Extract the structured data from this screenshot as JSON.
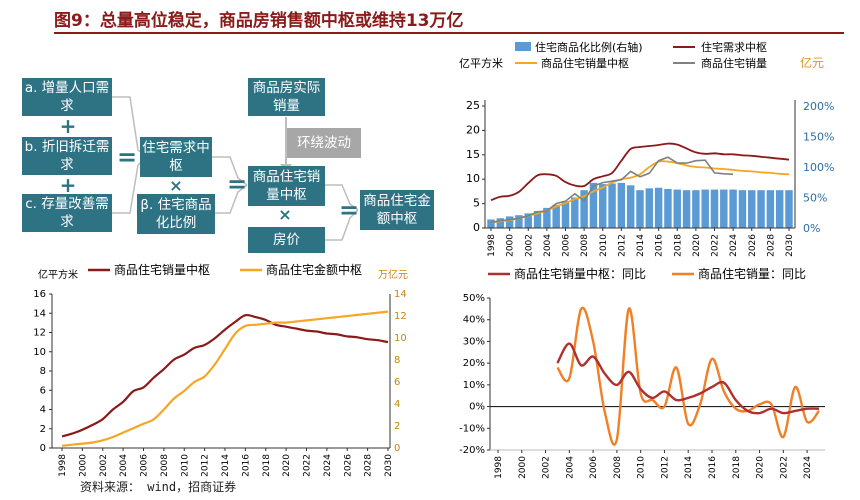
{
  "title": "图9：总量高位稳定，商品房销售额中枢或维持13万亿",
  "source": "资料来源： wind，招商证券",
  "colors": {
    "red": "#8b1a1a",
    "orange": "#f5a623",
    "blue": "#5b9bd5",
    "grey": "#808080",
    "teal": "#2e7384",
    "neg": "#b03030",
    "pos_orange": "#f07f25"
  },
  "diagram": {
    "box_a": "a. 增量人口需求",
    "box_b": "b. 折旧拆迁需求",
    "box_c": "c. 存量改善需求",
    "box_housing_demand": "住宅需求中枢",
    "box_beta": "β. 住宅商品化比例",
    "box_actual_sales": "商品房实际销量",
    "box_fluctuation": "环绕波动",
    "box_sales_center": "商品住宅销量中枢",
    "box_price": "房价",
    "box_amount_center": "商品住宅金额中枢",
    "plus": "+",
    "equals": "=",
    "times": "×"
  },
  "chart_data": [
    {
      "type": "bar+line",
      "legend": [
        "住宅商品化比例(右轴)",
        "住宅需求中枢",
        "商品住宅销量中枢",
        "商品住宅销量"
      ],
      "left_unit": "亿平方米",
      "right_unit": "亿元",
      "x": [
        1998,
        1999,
        2000,
        2001,
        2002,
        2003,
        2004,
        2005,
        2006,
        2007,
        2008,
        2009,
        2010,
        2011,
        2012,
        2013,
        2014,
        2015,
        2016,
        2017,
        2018,
        2019,
        2020,
        2021,
        2022,
        2023,
        2024,
        2025,
        2026,
        2027,
        2028,
        2029,
        2030
      ],
      "xticks": [
        "1998",
        "2000",
        "2002",
        "2004",
        "2006",
        "2008",
        "2010",
        "2012",
        "2014",
        "2016",
        "2018",
        "2020",
        "2022",
        "2024",
        "2026",
        "2028",
        "2030"
      ],
      "ylim": [
        0,
        25
      ],
      "yticks": [
        "0",
        "5",
        "10",
        "15",
        "20",
        "25"
      ],
      "y2lim": [
        0,
        200
      ],
      "y2ticks": [
        "0%",
        "50%",
        "100%",
        "150%",
        "200%"
      ],
      "ratio_bar_pct": [
        14,
        16,
        19,
        21,
        24,
        28,
        33,
        38,
        44,
        50,
        62,
        74,
        72,
        73,
        74,
        70,
        62,
        65,
        66,
        64,
        63,
        62,
        62,
        63,
        63,
        63,
        63,
        62,
        62,
        62,
        62,
        62,
        62
      ],
      "housing_demand": [
        5.7,
        6.4,
        6.6,
        7.4,
        9.2,
        10.8,
        11.0,
        10.7,
        9.4,
        8.7,
        8.6,
        10.0,
        10.6,
        11.3,
        13.8,
        16.2,
        16.6,
        16.8,
        17.0,
        17.3,
        17.1,
        16.3,
        15.5,
        15.2,
        15.3,
        15.1,
        15.1,
        14.9,
        14.8,
        14.6,
        14.4,
        14.2,
        14.0
      ],
      "sales_center": [
        1.1,
        1.4,
        1.6,
        2.0,
        2.5,
        3.0,
        3.6,
        4.4,
        5.1,
        5.9,
        6.5,
        7.5,
        8.3,
        9.3,
        10.0,
        10.3,
        11.0,
        12.5,
        13.6,
        13.6,
        13.3,
        12.8,
        12.5,
        12.4,
        12.2,
        12.1,
        11.9,
        11.7,
        11.6,
        11.4,
        11.3,
        11.1,
        11.0
      ],
      "actual_sales": [
        1.1,
        1.5,
        1.7,
        2.0,
        2.5,
        3.3,
        3.5,
        5.0,
        5.5,
        7.0,
        5.6,
        8.6,
        9.3,
        9.6,
        9.9,
        11.6,
        10.5,
        11.2,
        13.8,
        14.5,
        13.3,
        13.3,
        13.8,
        13.9,
        11.3,
        11.1,
        11.0
      ]
    },
    {
      "type": "line",
      "legend": [
        "商品住宅销量中枢",
        "商品住宅金额中枢"
      ],
      "left_unit": "亿平方米",
      "right_unit": "万亿元",
      "x": [
        1998,
        1999,
        2000,
        2001,
        2002,
        2003,
        2004,
        2005,
        2006,
        2007,
        2008,
        2009,
        2010,
        2011,
        2012,
        2013,
        2014,
        2015,
        2016,
        2017,
        2018,
        2019,
        2020,
        2021,
        2022,
        2023,
        2024,
        2025,
        2026,
        2027,
        2028,
        2029,
        2030
      ],
      "xticks": [
        "1998",
        "2000",
        "2002",
        "2004",
        "2006",
        "2008",
        "2010",
        "2012",
        "2014",
        "2016",
        "2018",
        "2020",
        "2022",
        "2024",
        "2026",
        "2028",
        "2030"
      ],
      "ylim": [
        0,
        16
      ],
      "yticks": [
        "0",
        "2",
        "4",
        "6",
        "8",
        "10",
        "12",
        "14",
        "16"
      ],
      "y2lim": [
        0,
        14
      ],
      "y2ticks": [
        "0",
        "2",
        "4",
        "6",
        "8",
        "10",
        "12",
        "14"
      ],
      "sales_center": [
        1.2,
        1.5,
        1.9,
        2.4,
        3.0,
        4.0,
        4.8,
        5.9,
        6.3,
        7.3,
        8.2,
        9.2,
        9.7,
        10.4,
        10.7,
        11.4,
        12.3,
        13.1,
        13.8,
        13.6,
        13.3,
        12.8,
        12.6,
        12.4,
        12.2,
        12.1,
        11.9,
        11.8,
        11.6,
        11.5,
        11.3,
        11.2,
        11.0
      ],
      "amount_center": [
        0.2,
        0.3,
        0.4,
        0.5,
        0.7,
        1.0,
        1.4,
        1.8,
        2.2,
        2.6,
        3.5,
        4.5,
        5.2,
        6.0,
        6.5,
        7.6,
        9.0,
        10.4,
        11.1,
        11.2,
        11.3,
        11.4,
        11.4,
        11.5,
        11.6,
        11.7,
        11.8,
        11.9,
        12.0,
        12.1,
        12.2,
        12.3,
        12.4
      ]
    },
    {
      "type": "line",
      "legend": [
        "商品住宅销量中枢：同比",
        "商品住宅销量：同比"
      ],
      "x": [
        2003,
        2004,
        2005,
        2006,
        2007,
        2008,
        2009,
        2010,
        2011,
        2012,
        2013,
        2014,
        2015,
        2016,
        2017,
        2018,
        2019,
        2020,
        2021,
        2022,
        2023,
        2024,
        2025
      ],
      "xticks": [
        "1998",
        "2000",
        "2002",
        "2004",
        "2006",
        "2008",
        "2010",
        "2012",
        "2014",
        "2016",
        "2018",
        "2020",
        "2022",
        "2024"
      ],
      "xlim": [
        1998,
        2025
      ],
      "ylim": [
        -20,
        50
      ],
      "yticks": [
        "-20%",
        "-10%",
        "0%",
        "10%",
        "20%",
        "30%",
        "40%",
        "50%"
      ],
      "center_yoy": [
        20,
        29,
        19,
        23,
        15,
        10,
        16,
        8,
        4,
        7,
        3,
        4,
        6,
        9,
        11,
        3,
        -2,
        -3,
        -1,
        -3,
        -2,
        -1,
        -1
      ],
      "sales_yoy": [
        18,
        13,
        45,
        30,
        -3,
        -15,
        45,
        6,
        3,
        0,
        18,
        -8,
        1,
        22,
        7,
        -1,
        -2,
        1,
        1,
        -14,
        9,
        -7,
        -2
      ]
    }
  ]
}
